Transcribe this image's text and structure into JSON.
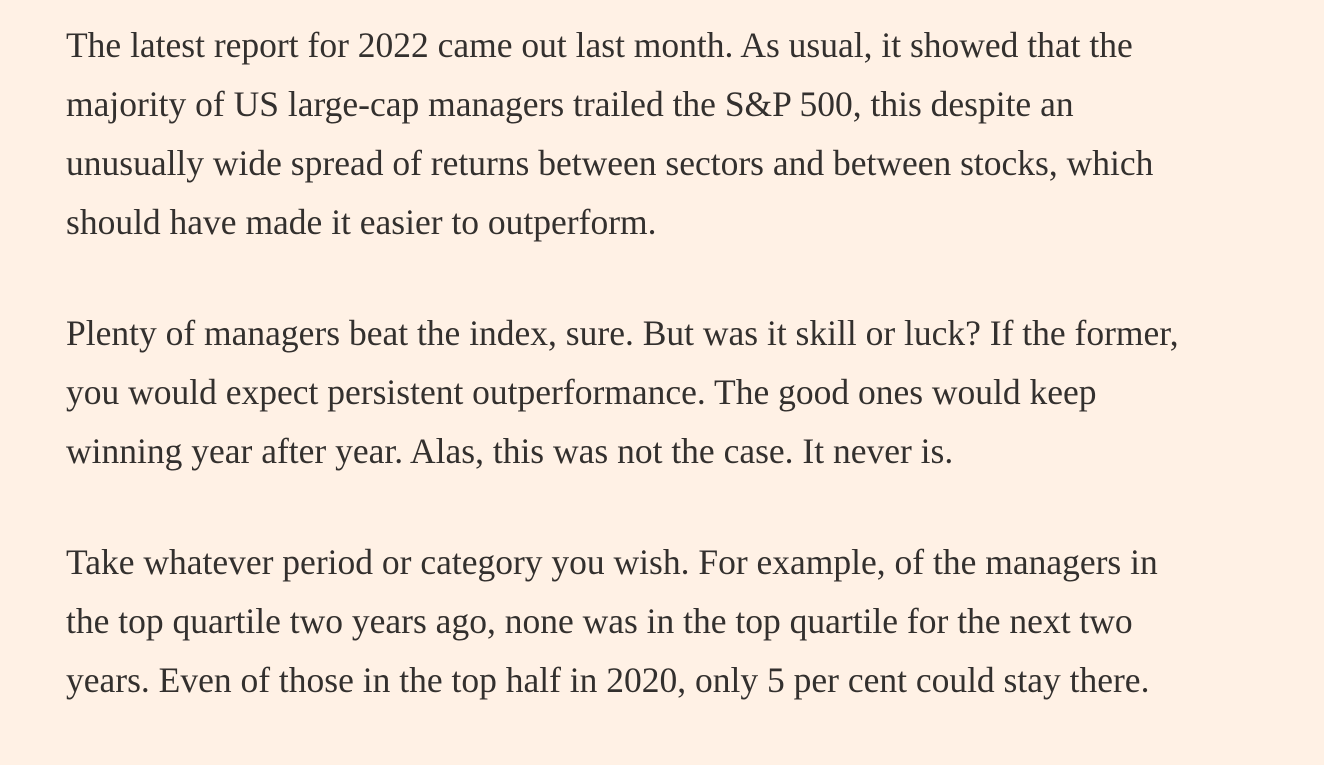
{
  "article": {
    "paragraphs": [
      {
        "lines": [
          "The latest report for 2022 came out last month. As usual, it showed that the",
          "majority of US large-cap managers trailed the S&P 500, this despite an",
          "unusually wide spread of returns between sectors and between stocks, which",
          "should have made it easier to outperform."
        ]
      },
      {
        "lines": [
          "Plenty of managers beat the index, sure. But was it skill or luck? If the former,",
          "you would expect persistent outperformance. The good ones would keep",
          "winning year after year. Alas, this was not the case. It never is."
        ]
      },
      {
        "lines": [
          "Take whatever period or category you wish. For example, of the managers in",
          "the top quartile two years ago, none was in the top quartile for the next two",
          "years. Even of those in the top half in 2020, only 5 per cent could stay there."
        ]
      }
    ]
  }
}
